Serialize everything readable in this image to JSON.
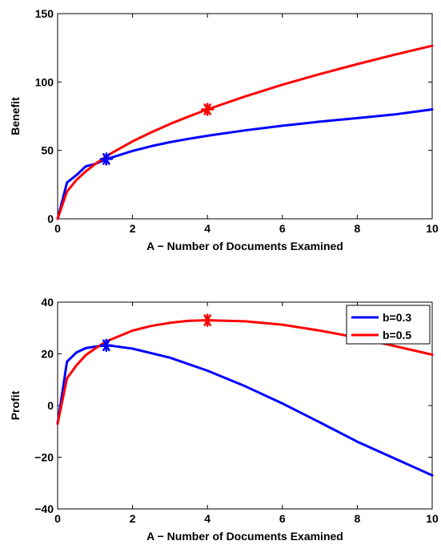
{
  "chart_data": [
    {
      "type": "line",
      "xlabel": "A − Number of Documents Examined",
      "ylabel": "Benefit",
      "xlim": [
        0,
        10
      ],
      "ylim": [
        0,
        150
      ],
      "xticks": [
        0,
        2,
        4,
        6,
        8,
        10
      ],
      "xtick_labels": [
        "0",
        "2",
        "4",
        "6",
        "8",
        "10"
      ],
      "yticks": [
        0,
        50,
        100,
        150
      ],
      "ytick_labels": [
        "0",
        "50",
        "100",
        "150"
      ],
      "grid": false,
      "series": [
        {
          "color": "#0000ff",
          "x": [
            0,
            0.25,
            0.5,
            0.75,
            1,
            1.25,
            1.5,
            2,
            2.5,
            3,
            3.5,
            4,
            5,
            6,
            7,
            8,
            9,
            10
          ],
          "y": [
            0,
            26.5,
            31.9,
            38.3,
            40.1,
            43.0,
            45.3,
            49.6,
            53.1,
            56.0,
            58.5,
            60.7,
            64.6,
            68.0,
            71.0,
            73.6,
            76.3,
            80.0
          ]
        },
        {
          "color": "#ff0000",
          "x": [
            0,
            0.25,
            0.5,
            0.75,
            1,
            1.25,
            1.5,
            2,
            2.5,
            3,
            3.5,
            4,
            5,
            6,
            7,
            8,
            9,
            10
          ],
          "y": [
            0,
            20.0,
            28.3,
            34.6,
            40.0,
            44.7,
            49.0,
            56.6,
            63.2,
            69.3,
            74.8,
            80.0,
            89.4,
            98.0,
            105.8,
            113.1,
            120.0,
            126.5
          ]
        }
      ],
      "markers": [
        {
          "x": 1.3,
          "y": 43.7,
          "color": "#0000ff",
          "symbol": "*"
        },
        {
          "x": 4,
          "y": 80,
          "color": "#ff0000",
          "symbol": "*"
        }
      ]
    },
    {
      "type": "line",
      "xlabel": "A − Number of Documents Examined",
      "ylabel": "Profit",
      "xlim": [
        0,
        10
      ],
      "ylim": [
        -40,
        40
      ],
      "xticks": [
        0,
        2,
        4,
        6,
        8,
        10
      ],
      "xtick_labels": [
        "0",
        "2",
        "4",
        "6",
        "8",
        "10"
      ],
      "yticks": [
        -40,
        -20,
        0,
        20,
        40
      ],
      "ytick_labels": [
        "−40",
        "−20",
        "0",
        "20",
        "40"
      ],
      "grid": false,
      "legend_position": "top-right",
      "series": [
        {
          "name": "b=0.3",
          "color": "#0000ff",
          "x": [
            0,
            0.25,
            0.5,
            0.75,
            1,
            1.3,
            1.5,
            2,
            3,
            4,
            5,
            6,
            7,
            8,
            9,
            10
          ],
          "y": [
            -7,
            17,
            20.5,
            22.2,
            22.8,
            23.3,
            23.0,
            22.0,
            18.5,
            13.5,
            7.5,
            0.8,
            -6.5,
            -14.0,
            -20.5,
            -27.0
          ]
        },
        {
          "name": "b=0.5",
          "color": "#ff0000",
          "x": [
            0,
            0.25,
            0.5,
            0.75,
            1,
            1.3,
            1.5,
            2,
            2.5,
            3,
            3.5,
            4,
            5,
            6,
            7,
            8,
            9,
            10
          ],
          "y": [
            -7,
            10.5,
            15.5,
            19.5,
            22.0,
            24.8,
            26.0,
            29.0,
            30.8,
            32.0,
            32.8,
            33.0,
            32.6,
            31.3,
            29.0,
            26.3,
            23.0,
            19.7
          ]
        }
      ],
      "markers": [
        {
          "x": 1.3,
          "y": 23.3,
          "color": "#0000ff",
          "symbol": "*"
        },
        {
          "x": 4,
          "y": 33,
          "color": "#ff0000",
          "symbol": "*"
        }
      ]
    }
  ]
}
